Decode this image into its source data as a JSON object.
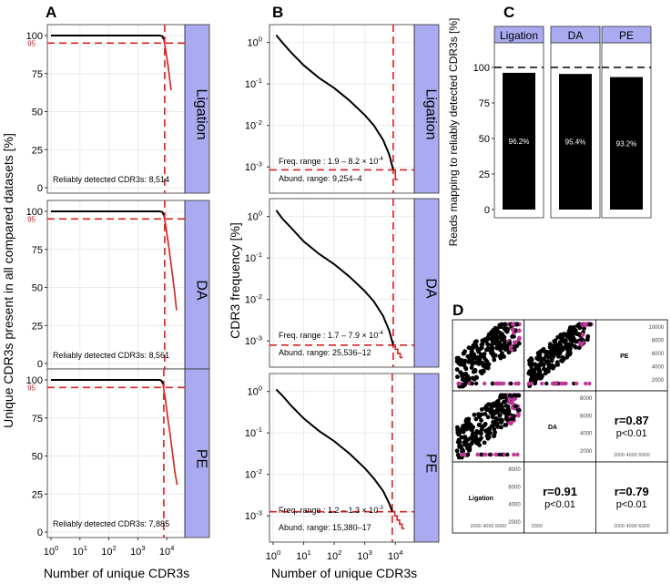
{
  "chart_data": [
    {
      "id": "A",
      "type": "line",
      "panel_letter": "A",
      "ylabel": "Unique CDR3s present in all compared datasets [%]",
      "xlabel": "Number of unique CDR3s",
      "xscale": "log10",
      "xlim": [
        0,
        4.5
      ],
      "ylim": [
        0,
        100
      ],
      "xticks": [
        0,
        1,
        2,
        3,
        4
      ],
      "xtick_labels": [
        "10",
        "10",
        "10",
        "10",
        "10"
      ],
      "xtick_exps": [
        "0",
        "1",
        "2",
        "3",
        "4"
      ],
      "yticks": [
        0,
        25,
        50,
        75,
        100
      ],
      "ytick_labels": [
        "0",
        "25",
        "50",
        "75",
        "100"
      ],
      "threshold_label": "95",
      "threshold_value": 95,
      "line_color": "#d62020",
      "strip_color": "#aaaaf0",
      "facets": [
        {
          "name": "Ligation",
          "annotation": "Reliably detected CDR3s: 8,514",
          "vline_log10": 3.93,
          "series": [
            {
              "name": "unique CDR3s present",
              "color": "#000000",
              "x": [
                0,
                1,
                2,
                3,
                3.5,
                3.75,
                3.85,
                3.9
              ],
              "y": [
                100,
                100,
                100,
                100,
                100,
                100,
                99.6,
                97.5
              ]
            },
            {
              "name": "beyond threshold",
              "color": "#d62020",
              "x": [
                3.9,
                3.95,
                4.0,
                4.05,
                4.1,
                4.15
              ],
              "y": [
                97.5,
                92,
                86,
                80,
                72,
                64
              ]
            }
          ]
        },
        {
          "name": "DA",
          "annotation": "Reliably detected CDR3s: 8,561",
          "vline_log10": 3.93,
          "series": [
            {
              "name": "unique CDR3s present",
              "color": "#000000",
              "x": [
                0,
                1,
                2,
                3,
                3.5,
                3.75,
                3.85,
                3.9
              ],
              "y": [
                100,
                100,
                100,
                100,
                100,
                100,
                99.6,
                97.5
              ]
            },
            {
              "name": "beyond threshold",
              "color": "#d62020",
              "x": [
                3.9,
                3.97,
                4.05,
                4.12,
                4.2,
                4.28,
                4.34
              ],
              "y": [
                97.5,
                90,
                80,
                70,
                58,
                46,
                35
              ]
            }
          ]
        },
        {
          "name": "PE",
          "annotation": "Reliably detected CDR3s: 7,885",
          "vline_log10": 3.9,
          "series": [
            {
              "name": "unique CDR3s present",
              "color": "#000000",
              "x": [
                0,
                1,
                2,
                3,
                3.5,
                3.75,
                3.82,
                3.87
              ],
              "y": [
                100,
                100,
                100,
                100,
                100,
                100,
                99.5,
                97.5
              ]
            },
            {
              "name": "beyond threshold",
              "color": "#d62020",
              "x": [
                3.87,
                3.95,
                4.03,
                4.12,
                4.2,
                4.28,
                4.36
              ],
              "y": [
                97.5,
                88,
                76,
                64,
                52,
                40,
                31
              ]
            }
          ]
        }
      ]
    },
    {
      "id": "B",
      "type": "line",
      "panel_letter": "B",
      "ylabel": "CDR3 frequency [%]",
      "xlabel": "Number of unique CDR3s",
      "xscale": "log10",
      "yscale": "log10",
      "xlim": [
        0,
        4.5
      ],
      "ylim": [
        -3.5,
        0.3
      ],
      "xticks": [
        0,
        1,
        2,
        3,
        4
      ],
      "xtick_labels": [
        "10",
        "10",
        "10",
        "10",
        "10"
      ],
      "xtick_exps": [
        "0",
        "1",
        "2",
        "3",
        "4"
      ],
      "yticks": [
        0,
        -1,
        -2,
        -3
      ],
      "ytick_labels": [
        "10",
        "10",
        "10",
        "10"
      ],
      "ytick_exps": [
        "0",
        "-1",
        "-2",
        "-3"
      ],
      "facets": [
        {
          "name": "Ligation",
          "freq_text": "Freq. range : 1.9 – 8.2 × 10",
          "freq_exp": "-4",
          "abund_text": "Abund. range:  9,254–4",
          "vline_log10": 3.93,
          "hline_log10": -3.07,
          "series": [
            {
              "name": "frequency",
              "color": "#000000",
              "x": [
                0.1,
                0.3,
                0.6,
                1.0,
                1.5,
                2.0,
                2.5,
                3.0,
                3.3,
                3.6,
                3.8,
                3.93
              ],
              "y": [
                0.18,
                0.0,
                -0.25,
                -0.55,
                -0.85,
                -1.1,
                -1.4,
                -1.75,
                -2.0,
                -2.35,
                -2.7,
                -3.07
              ]
            },
            {
              "name": "tail",
              "color": "#d62020",
              "x": [
                3.93,
                4.0,
                4.0,
                4.08
              ],
              "y": [
                -3.07,
                -3.07,
                -3.3,
                -3.3
              ]
            }
          ]
        },
        {
          "name": "DA",
          "freq_text": "Freq. range : 1.7 – 7.9 × 10",
          "freq_exp": "-4",
          "abund_text": "Abund. range:  25,536–12",
          "vline_log10": 3.93,
          "hline_log10": -3.1,
          "series": [
            {
              "name": "frequency",
              "color": "#000000",
              "x": [
                0.1,
                0.3,
                0.6,
                1.0,
                1.5,
                2.0,
                2.5,
                3.0,
                3.3,
                3.6,
                3.8,
                3.93
              ],
              "y": [
                0.15,
                -0.05,
                -0.28,
                -0.6,
                -0.9,
                -1.15,
                -1.45,
                -1.8,
                -2.05,
                -2.4,
                -2.75,
                -3.1
              ]
            },
            {
              "name": "tail",
              "color": "#d62020",
              "x": [
                3.93,
                4.0,
                4.0,
                4.08,
                4.08,
                4.16,
                4.16,
                4.24
              ],
              "y": [
                -3.1,
                -3.1,
                -3.2,
                -3.2,
                -3.3,
                -3.3,
                -3.4,
                -3.4
              ]
            }
          ]
        },
        {
          "name": "PE",
          "freq_text": "Freq. range : 1.2 – 1.3 × 10",
          "freq_exp": "-3",
          "abund_text": "Abund. range:  15,380–17",
          "vline_log10": 3.9,
          "hline_log10": -2.9,
          "series": [
            {
              "name": "frequency",
              "color": "#000000",
              "x": [
                0.1,
                0.3,
                0.6,
                1.0,
                1.5,
                2.0,
                2.5,
                3.0,
                3.3,
                3.6,
                3.8,
                3.9
              ],
              "y": [
                0.05,
                -0.1,
                -0.35,
                -0.65,
                -0.95,
                -1.2,
                -1.5,
                -1.85,
                -2.1,
                -2.4,
                -2.7,
                -2.9
              ]
            },
            {
              "name": "tail",
              "color": "#d62020",
              "x": [
                3.9,
                3.98,
                3.98,
                4.06,
                4.06,
                4.14,
                4.14,
                4.22,
                4.22,
                4.3
              ],
              "y": [
                -2.9,
                -2.9,
                -3.0,
                -3.0,
                -3.1,
                -3.1,
                -3.2,
                -3.2,
                -3.3,
                -3.3
              ]
            }
          ]
        }
      ]
    },
    {
      "id": "C",
      "type": "bar",
      "panel_letter": "C",
      "ylabel": "Reads mapping to reliably detected CDR3s [%]",
      "ylim": [
        0,
        100
      ],
      "yticks": [
        0,
        25,
        50,
        75,
        100
      ],
      "ytick_labels": [
        "0",
        "25",
        "50",
        "75",
        "100"
      ],
      "reference_line": 100,
      "categories": [
        "Ligation",
        "DA",
        "PE"
      ],
      "values": [
        96.2,
        95.4,
        93.2
      ],
      "value_labels": [
        "96.2%",
        "95.4%",
        "93.2%"
      ],
      "bar_color": "#000000",
      "strip_color": "#aaaaf0"
    },
    {
      "id": "D",
      "type": "scatter",
      "panel_letter": "D",
      "variables": [
        "PE",
        "DA",
        "Ligation"
      ],
      "axis_ticks": [
        "2000",
        "4000",
        "6000",
        "8000",
        "10000"
      ],
      "diag_ticks_PE": [
        "10000",
        "8000",
        "6000",
        "4000",
        "2000"
      ],
      "diag_ticks_DA": [
        "8000",
        "6000",
        "4000",
        "2000"
      ],
      "diag_ticks_Ligation": [
        "8000",
        "6000",
        "4000",
        "2000"
      ],
      "point_colors": [
        "#000000",
        "#c0399a"
      ],
      "correlations": [
        {
          "pair": "PE-DA",
          "r_text": "r=0.87",
          "p_text": "p<0.01"
        },
        {
          "pair": "PE-Ligation",
          "r_text": "r=0.79",
          "p_text": "p<0.01"
        },
        {
          "pair": "DA-Ligation",
          "r_text": "r=0.91",
          "p_text": "p<0.01"
        }
      ],
      "small_tick_text": {
        "pe_ligation_left": "2000",
        "pe_da_bottom": "2000  4000  6000",
        "da_lig_bottom": "2000",
        "pe_lig_bottom": "2000  4000  6000"
      }
    }
  ]
}
